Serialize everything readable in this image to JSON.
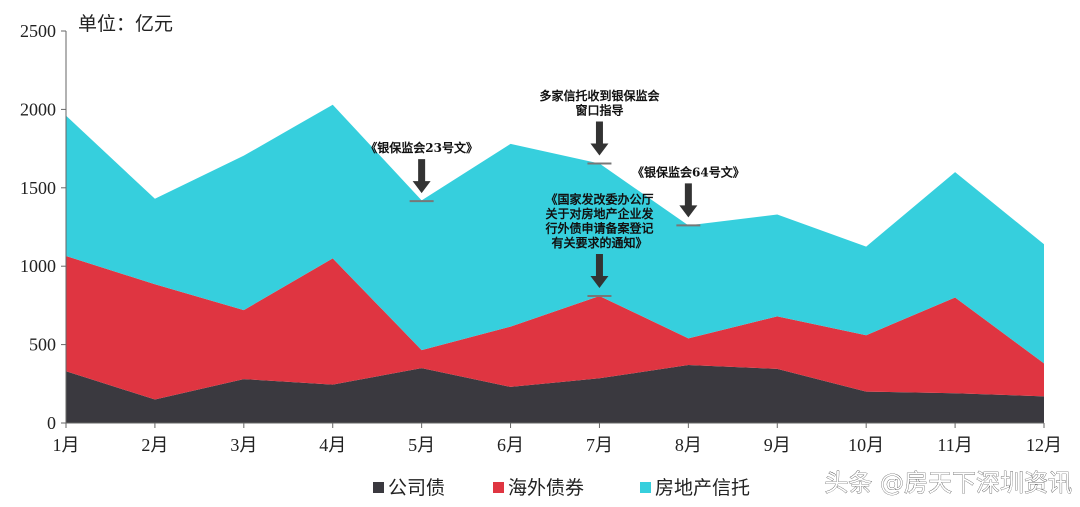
{
  "chart_data": {
    "type": "area",
    "stacked": true,
    "unit_label": "单位：亿元",
    "categories": [
      "1月",
      "2月",
      "3月",
      "4月",
      "5月",
      "6月",
      "7月",
      "8月",
      "9月",
      "10月",
      "11月",
      "12月"
    ],
    "ylim": [
      0,
      2500
    ],
    "yticks": [
      0,
      500,
      1000,
      1500,
      2000,
      2500
    ],
    "grid": false,
    "legend_position": "bottom",
    "series": [
      {
        "name": "公司债",
        "color": "#3a393f",
        "values": [
          330,
          150,
          280,
          245,
          350,
          230,
          285,
          370,
          345,
          200,
          190,
          170
        ]
      },
      {
        "name": "海外债券",
        "color": "#df3541",
        "values": [
          735,
          735,
          440,
          805,
          115,
          385,
          525,
          170,
          335,
          360,
          610,
          210
        ]
      },
      {
        "name": "房地产信托",
        "color": "#36cfdd",
        "values": [
          895,
          545,
          985,
          980,
          955,
          1165,
          845,
          720,
          650,
          565,
          800,
          760
        ]
      }
    ],
    "annotations": [
      {
        "lines": [
          "《银保监会23号文》"
        ],
        "month": "5月",
        "value": 1415
      },
      {
        "lines": [
          "多家信托收到银保监会",
          "窗口指导"
        ],
        "month": "7月",
        "value": 1655
      },
      {
        "lines": [
          "《银保监会64号文》"
        ],
        "month": "8月",
        "value": 1260
      },
      {
        "lines": [
          "《国家发改委办公厅",
          "关于对房地产企业发",
          "行外债申请备案登记",
          "有关要求的通知》"
        ],
        "month": "7月",
        "value": 810
      }
    ]
  },
  "watermark": "头条 @房天下深圳资讯"
}
